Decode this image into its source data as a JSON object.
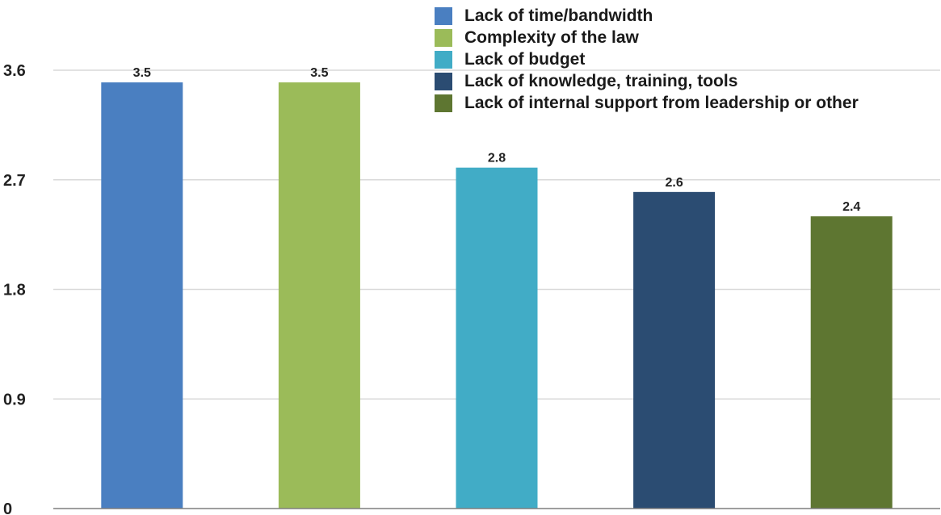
{
  "chart_data": {
    "type": "bar",
    "categories": [
      "Lack of time/bandwidth",
      "Complexity of the law",
      "Lack of budget",
      "Lack of knowledge, training, tools",
      "Lack of internal support from leadership or other"
    ],
    "values": [
      3.5,
      3.5,
      2.8,
      2.6,
      2.4
    ],
    "value_labels": [
      "3.5",
      "3.5",
      "2.8",
      "2.6",
      "2.4"
    ],
    "colors": [
      "#4a7fc1",
      "#9bbb59",
      "#41acc6",
      "#2b4c72",
      "#5e7631"
    ],
    "yticks": [
      "0",
      "0.9",
      "1.8",
      "2.7",
      "3.6"
    ],
    "ylim": [
      0,
      3.6
    ],
    "grid": true,
    "legend_position": "top-right",
    "title": "",
    "xlabel": "",
    "ylabel": ""
  },
  "legend": {
    "items": [
      {
        "label": "Lack of time/bandwidth"
      },
      {
        "label": "Complexity of the law"
      },
      {
        "label": "Lack of budget"
      },
      {
        "label": "Lack of knowledge, training, tools"
      },
      {
        "label": "Lack of internal support from leadership or other"
      }
    ]
  }
}
